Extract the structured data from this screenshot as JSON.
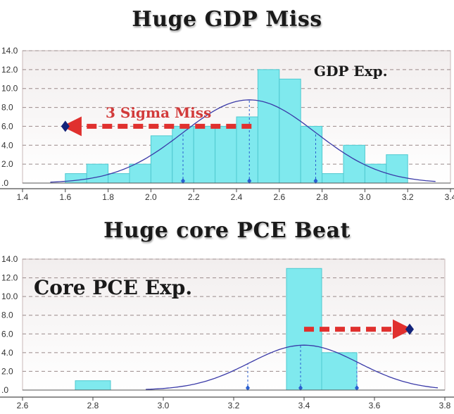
{
  "colors": {
    "bar_fill": "#7fe9ee",
    "bar_stroke": "#4fc9d0",
    "bar_highlight": "#3fd5dc",
    "curve": "#3a3aa8",
    "arrow": "#e0302e",
    "diamond": "#13237a",
    "grid": "#9a8a8a",
    "plot_top": "#f2eeee",
    "plot_bottom": "#ffffff"
  },
  "chart_data": [
    {
      "type": "bar",
      "title": "Huge GDP Miss",
      "annotation_label": "GDP Exp.",
      "arrow_label": "3 Sigma Miss",
      "xlim": [
        1.4,
        3.4
      ],
      "ylim": [
        0,
        14
      ],
      "x_ticks": [
        "1.4",
        "1.6",
        "1.8",
        "2.0",
        "2.2",
        "2.4",
        "2.6",
        "2.8",
        "3.0",
        "3.2",
        "3.4"
      ],
      "y_ticks": [
        ".0",
        "2.0",
        "4.0",
        "6.0",
        "8.0",
        "10.0",
        "12.0",
        "14.0"
      ],
      "bar_width": 0.1,
      "bars": [
        {
          "x": 1.65,
          "value": 1
        },
        {
          "x": 1.75,
          "value": 2
        },
        {
          "x": 1.85,
          "value": 1
        },
        {
          "x": 1.95,
          "value": 2
        },
        {
          "x": 2.05,
          "value": 5
        },
        {
          "x": 2.15,
          "value": 6
        },
        {
          "x": 2.25,
          "value": 6
        },
        {
          "x": 2.35,
          "value": 6
        },
        {
          "x": 2.45,
          "value": 7
        },
        {
          "x": 2.55,
          "value": 12
        },
        {
          "x": 2.65,
          "value": 11
        },
        {
          "x": 2.75,
          "value": 6
        },
        {
          "x": 2.85,
          "value": 1
        },
        {
          "x": 2.95,
          "value": 4
        },
        {
          "x": 3.05,
          "value": 2
        },
        {
          "x": 3.15,
          "value": 3
        }
      ],
      "curve": {
        "mean": 2.46,
        "sd": 0.31,
        "peak": 8.8,
        "x_start": 1.53,
        "x_end": 3.33
      },
      "markers": [
        2.15,
        2.46,
        2.77
      ],
      "actual": {
        "x": 1.6,
        "y": 6.0
      },
      "arrow": {
        "from": 2.47,
        "to": 1.63,
        "y": 6.0
      }
    },
    {
      "type": "bar",
      "title": "Huge core PCE Beat",
      "annotation_label": "Core PCE Exp.",
      "xlim": [
        2.6,
        3.8
      ],
      "ylim": [
        0,
        14
      ],
      "x_ticks": [
        "2.6",
        "2.8",
        "3.0",
        "3.2",
        "3.4",
        "3.6",
        "3.8"
      ],
      "y_ticks": [
        ".0",
        "2.0",
        "4.0",
        "6.0",
        "8.0",
        "10.0",
        "12.0",
        "14.0"
      ],
      "bar_width": 0.1,
      "bars": [
        {
          "x": 2.8,
          "value": 1
        },
        {
          "x": 3.4,
          "value": 13
        },
        {
          "x": 3.5,
          "value": 4
        }
      ],
      "curve": {
        "mean": 3.4,
        "sd": 0.155,
        "peak": 4.8,
        "x_start": 2.95,
        "x_end": 3.78
      },
      "markers": [
        3.24,
        3.39,
        3.55
      ],
      "actual": {
        "x": 3.7,
        "y": 6.5
      },
      "arrow": {
        "from": 3.4,
        "to": 3.68,
        "y": 6.5
      }
    }
  ]
}
